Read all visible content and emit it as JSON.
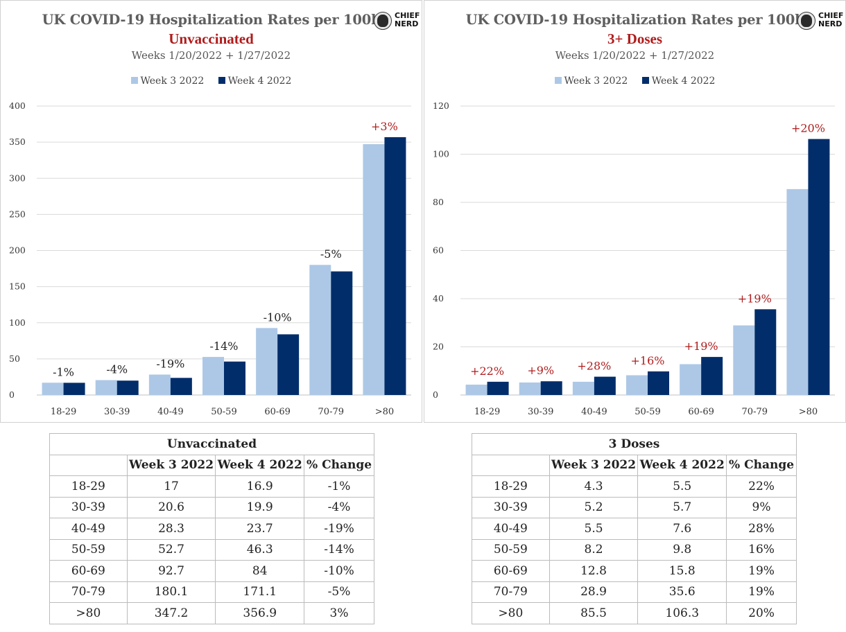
{
  "colors": {
    "week3": "#adc8e6",
    "week4": "#012e6b",
    "positive_label": "#b01c1c",
    "negative_label": "#222222"
  },
  "logo": {
    "line1": "CHIEF",
    "line2": "NERD",
    "icon": "chief-nerd-logo-icon"
  },
  "chart_data": [
    {
      "type": "bar",
      "title": "UK COVID-19 Hospitalization Rates per 100k",
      "subtitle": "Unvaccinated",
      "weeks_text": "Weeks 1/20/2022 + 1/27/2022",
      "categories": [
        "18-29",
        "30-39",
        "40-49",
        "50-59",
        "60-69",
        "70-79",
        ">80"
      ],
      "series": [
        {
          "name": "Week 3 2022",
          "values": [
            17,
            20.6,
            28.3,
            52.7,
            92.7,
            180.1,
            347.2
          ]
        },
        {
          "name": "Week 4 2022",
          "values": [
            16.9,
            19.9,
            23.7,
            46.3,
            84,
            171.1,
            356.9
          ]
        }
      ],
      "annotations": [
        "-1%",
        "-4%",
        "-19%",
        "-14%",
        "-10%",
        "-5%",
        "+3%"
      ],
      "yticks": [
        0,
        50,
        100,
        150,
        200,
        250,
        300,
        350,
        400
      ],
      "ylim": [
        0,
        400
      ],
      "grid": true,
      "legend": "top-center"
    },
    {
      "type": "bar",
      "title": "UK COVID-19 Hospitalization Rates per 100k",
      "subtitle": "3+ Doses",
      "weeks_text": "Weeks 1/20/2022 + 1/27/2022",
      "categories": [
        "18-29",
        "30-39",
        "40-49",
        "50-59",
        "60-69",
        "70-79",
        ">80"
      ],
      "series": [
        {
          "name": "Week 3 2022",
          "values": [
            4.3,
            5.2,
            5.5,
            8.2,
            12.8,
            28.9,
            85.5
          ]
        },
        {
          "name": "Week 4 2022",
          "values": [
            5.5,
            5.7,
            7.6,
            9.8,
            15.8,
            35.6,
            106.3
          ]
        }
      ],
      "annotations": [
        "+22%",
        "+9%",
        "+28%",
        "+16%",
        "+19%",
        "+19%",
        "+20%"
      ],
      "yticks": [
        0,
        20,
        40,
        60,
        80,
        100,
        120
      ],
      "ylim": [
        0,
        120
      ],
      "grid": true,
      "legend": "top-center"
    }
  ],
  "tables": [
    {
      "title": "Unvaccinated",
      "headers": [
        "",
        "Week 3 2022",
        "Week 4 2022",
        "% Change"
      ],
      "rows": [
        [
          "18-29",
          "17",
          "16.9",
          "-1%"
        ],
        [
          "30-39",
          "20.6",
          "19.9",
          "-4%"
        ],
        [
          "40-49",
          "28.3",
          "23.7",
          "-19%"
        ],
        [
          "50-59",
          "52.7",
          "46.3",
          "-14%"
        ],
        [
          "60-69",
          "92.7",
          "84",
          "-10%"
        ],
        [
          "70-79",
          "180.1",
          "171.1",
          "-5%"
        ],
        [
          ">80",
          "347.2",
          "356.9",
          "3%"
        ]
      ]
    },
    {
      "title": "3 Doses",
      "headers": [
        "",
        "Week 3 2022",
        "Week 4 2022",
        "% Change"
      ],
      "rows": [
        [
          "18-29",
          "4.3",
          "5.5",
          "22%"
        ],
        [
          "30-39",
          "5.2",
          "5.7",
          "9%"
        ],
        [
          "40-49",
          "5.5",
          "7.6",
          "28%"
        ],
        [
          "50-59",
          "8.2",
          "9.8",
          "16%"
        ],
        [
          "60-69",
          "12.8",
          "15.8",
          "19%"
        ],
        [
          "70-79",
          "28.9",
          "35.6",
          "19%"
        ],
        [
          ">80",
          "85.5",
          "106.3",
          "20%"
        ]
      ]
    }
  ]
}
